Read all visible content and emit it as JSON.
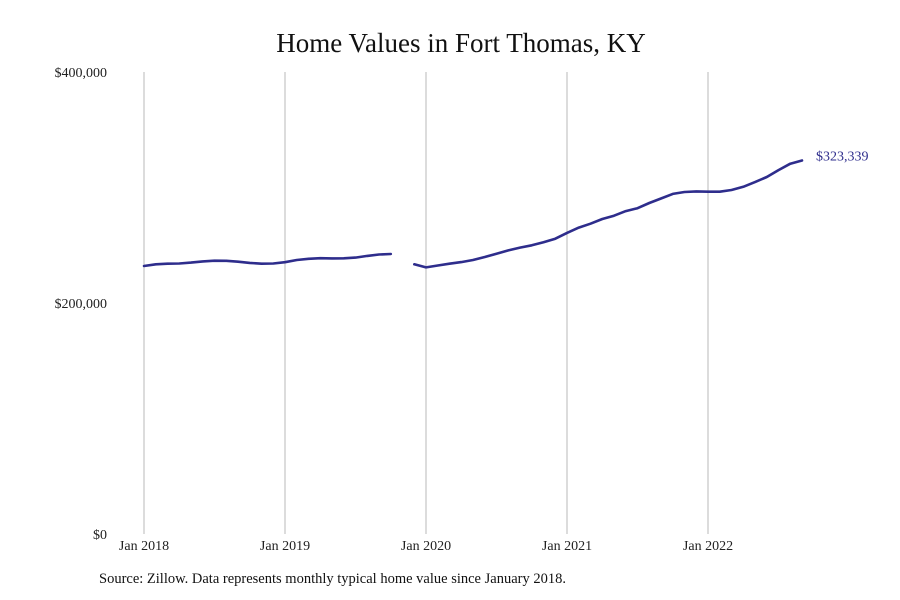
{
  "colors": {
    "line": "#2e2d8c",
    "grid": "#b8b8b8"
  },
  "chart_data": {
    "type": "line",
    "title": "Home Values in Fort Thomas, KY",
    "y_tick_labels": [
      "$400,000",
      "$200,000",
      "$0"
    ],
    "y_ticks": [
      400000,
      200000,
      0
    ],
    "ylim": [
      0,
      400000
    ],
    "x_tick_labels": [
      "Jan 2018",
      "Jan 2019",
      "Jan 2020",
      "Jan 2021",
      "Jan 2022"
    ],
    "x_ticks": [
      "2018-01",
      "2019-01",
      "2020-01",
      "2021-01",
      "2022-01"
    ],
    "grid": "vertical at x ticks",
    "end_label": "$323,339",
    "series": [
      {
        "segments": [
          [
            [
              "2018-01",
              232000
            ],
            [
              "2018-02",
              233500
            ],
            [
              "2018-03",
              234000
            ],
            [
              "2018-04",
              234200
            ],
            [
              "2018-05",
              235000
            ],
            [
              "2018-06",
              236000
            ],
            [
              "2018-07",
              236600
            ],
            [
              "2018-08",
              236500
            ],
            [
              "2018-09",
              235800
            ],
            [
              "2018-10",
              234700
            ],
            [
              "2018-11",
              234000
            ],
            [
              "2018-12",
              234200
            ],
            [
              "2019-01",
              235300
            ],
            [
              "2019-02",
              237200
            ],
            [
              "2019-03",
              238300
            ],
            [
              "2019-04",
              238800
            ],
            [
              "2019-05",
              238600
            ],
            [
              "2019-06",
              238700
            ],
            [
              "2019-07",
              239300
            ],
            [
              "2019-08",
              240800
            ],
            [
              "2019-09",
              242000
            ],
            [
              "2019-10",
              242400
            ]
          ],
          [
            [
              "2019-12",
              233500
            ],
            [
              "2020-01",
              230800
            ],
            [
              "2020-02",
              232500
            ],
            [
              "2020-03",
              234000
            ],
            [
              "2020-04",
              235400
            ],
            [
              "2020-05",
              237200
            ],
            [
              "2020-06",
              239800
            ],
            [
              "2020-07",
              242700
            ],
            [
              "2020-08",
              245500
            ],
            [
              "2020-09",
              248000
            ],
            [
              "2020-10",
              250000
            ],
            [
              "2020-11",
              252600
            ],
            [
              "2020-12",
              255700
            ],
            [
              "2021-01",
              260700
            ],
            [
              "2021-02",
              265300
            ],
            [
              "2021-03",
              268700
            ],
            [
              "2021-04",
              272700
            ],
            [
              "2021-05",
              275600
            ],
            [
              "2021-06",
              279600
            ],
            [
              "2021-07",
              282100
            ],
            [
              "2021-08",
              286600
            ],
            [
              "2021-09",
              290500
            ],
            [
              "2021-10",
              294500
            ],
            [
              "2021-11",
              296100
            ],
            [
              "2021-12",
              296600
            ],
            [
              "2022-01",
              296400
            ],
            [
              "2022-02",
              296400
            ],
            [
              "2022-03",
              297800
            ],
            [
              "2022-04",
              300600
            ],
            [
              "2022-05",
              304700
            ],
            [
              "2022-06",
              309100
            ],
            [
              "2022-07",
              315100
            ],
            [
              "2022-08",
              320600
            ],
            [
              "2022-09",
              323339
            ]
          ]
        ]
      }
    ]
  },
  "footer": {
    "source": "Source: Zillow. Data represents monthly typical home value since January 2018."
  }
}
